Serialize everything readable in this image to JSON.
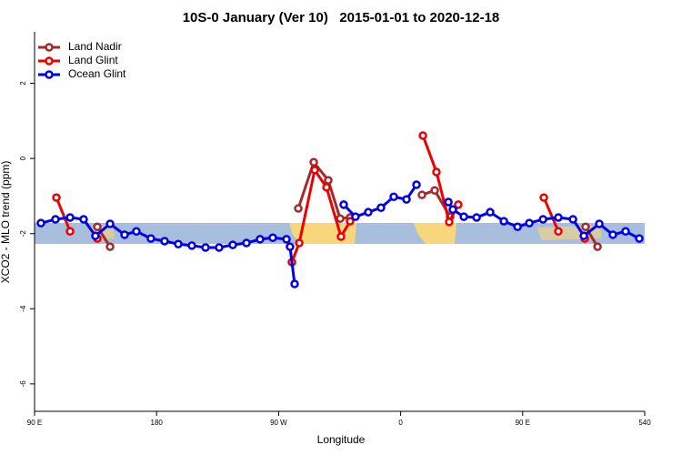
{
  "chart_data": {
    "type": "line",
    "title": "10S-0 January (Ver 10)   2015-01-01 to 2020-12-18",
    "x_label": "Longitude",
    "y_label": "XCO2 - MLO trend (ppm)",
    "xlim": [
      90,
      540
    ],
    "ylim": [
      -6.73,
      3.37
    ],
    "xticks": [
      {
        "value": 90,
        "label": "90 E"
      },
      180,
      {
        "value": 270,
        "label": "90 W"
      },
      {
        "value": 360,
        "label": "0"
      },
      {
        "value": 450,
        "label": "90 E"
      },
      540
    ],
    "yticks": [
      -6,
      -4,
      -2,
      0,
      2
    ],
    "legend": "top-left",
    "series": [
      {
        "name": "Land Nadir",
        "color": "#a52a2a",
        "x": [
          136.3,
          145.7,
          null,
          284.5,
          295.9,
          306.6,
          315.4,
          322.7,
          null,
          375.7,
          385.1,
          396.5,
          null,
          496.4,
          505.2
        ],
        "values": [
          -1.82,
          -2.35,
          null,
          -1.33,
          -0.1,
          -0.58,
          -1.6,
          -1.57,
          null,
          -0.97,
          -0.85,
          -1.55,
          null,
          -1.82,
          -2.35
        ]
      },
      {
        "name": "Land Glint",
        "color": "#ee0000",
        "x": [
          106.1,
          116.2,
          null,
          136.3,
          null,
          279.8,
          285.2,
          296.6,
          305.3,
          316.0,
          322.7,
          null,
          376.4,
          386.4,
          395.8,
          402.5,
          null,
          465.6,
          476.3,
          null,
          495.8
        ],
        "values": [
          -1.04,
          -1.94,
          null,
          -2.13,
          null,
          -2.76,
          -2.25,
          -0.31,
          -0.77,
          -2.08,
          -1.67,
          null,
          0.61,
          -0.36,
          -1.69,
          -1.23,
          null,
          -1.04,
          -1.94,
          null,
          -2.13
        ]
      },
      {
        "name": "Ocean Glint",
        "color": "#0000ee",
        "x": [
          94.7,
          105.4,
          116.2,
          126.2,
          134.9,
          145.7,
          156.4,
          165.1,
          175.8,
          185.9,
          196.0,
          206.0,
          216.1,
          226.1,
          236.2,
          246.3,
          256.3,
          265.7,
          275.8,
          278.4,
          281.8,
          null,
          318.0,
          326.7,
          336.1,
          345.5,
          354.9,
          364.3,
          371.7,
          null,
          395.2,
          398.5,
          406.6,
          416.0,
          426.0,
          436.1,
          446.2,
          454.9,
          465.0,
          476.3,
          487.1,
          495.1,
          506.5,
          516.5,
          525.9,
          536.0
        ],
        "values": [
          -1.72,
          -1.62,
          -1.57,
          -1.62,
          -2.06,
          -1.74,
          -2.03,
          -1.94,
          -2.13,
          -2.2,
          -2.28,
          -2.32,
          -2.37,
          -2.37,
          -2.3,
          -2.25,
          -2.15,
          -2.11,
          -2.15,
          -2.35,
          -3.34,
          null,
          -1.23,
          -1.55,
          -1.43,
          -1.31,
          -1.02,
          -1.09,
          -0.7,
          null,
          -1.16,
          -1.36,
          -1.55,
          -1.57,
          -1.43,
          -1.67,
          -1.82,
          -1.72,
          -1.62,
          -1.57,
          -1.62,
          -2.06,
          -1.74,
          -2.03,
          -1.94,
          -2.13
        ]
      }
    ]
  }
}
